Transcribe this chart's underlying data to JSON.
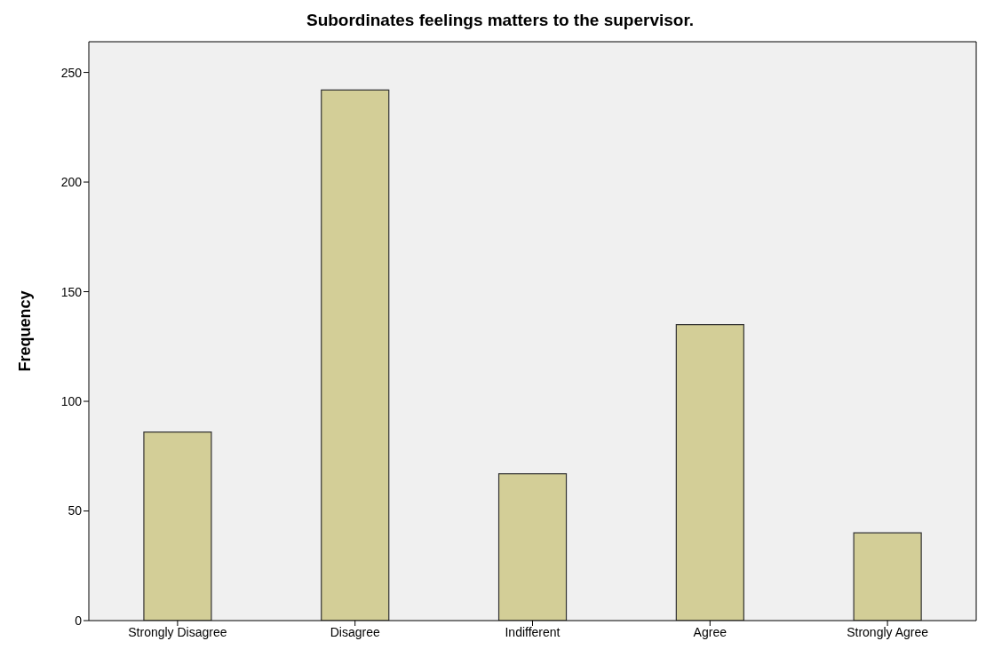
{
  "chart_data": {
    "type": "bar",
    "title": "Subordinates feelings matters to the supervisor.",
    "ylabel": "Frequency",
    "categories": [
      "Strongly Disagree",
      "Disagree",
      "Indifferent",
      "Agree",
      "Strongly Agree"
    ],
    "values": [
      86,
      242,
      67,
      135,
      40
    ],
    "color": "#d3ce97",
    "ylim": [
      0,
      264
    ],
    "yticks": [
      0,
      50,
      100,
      150,
      200,
      250
    ],
    "grid": false,
    "legend": false
  }
}
